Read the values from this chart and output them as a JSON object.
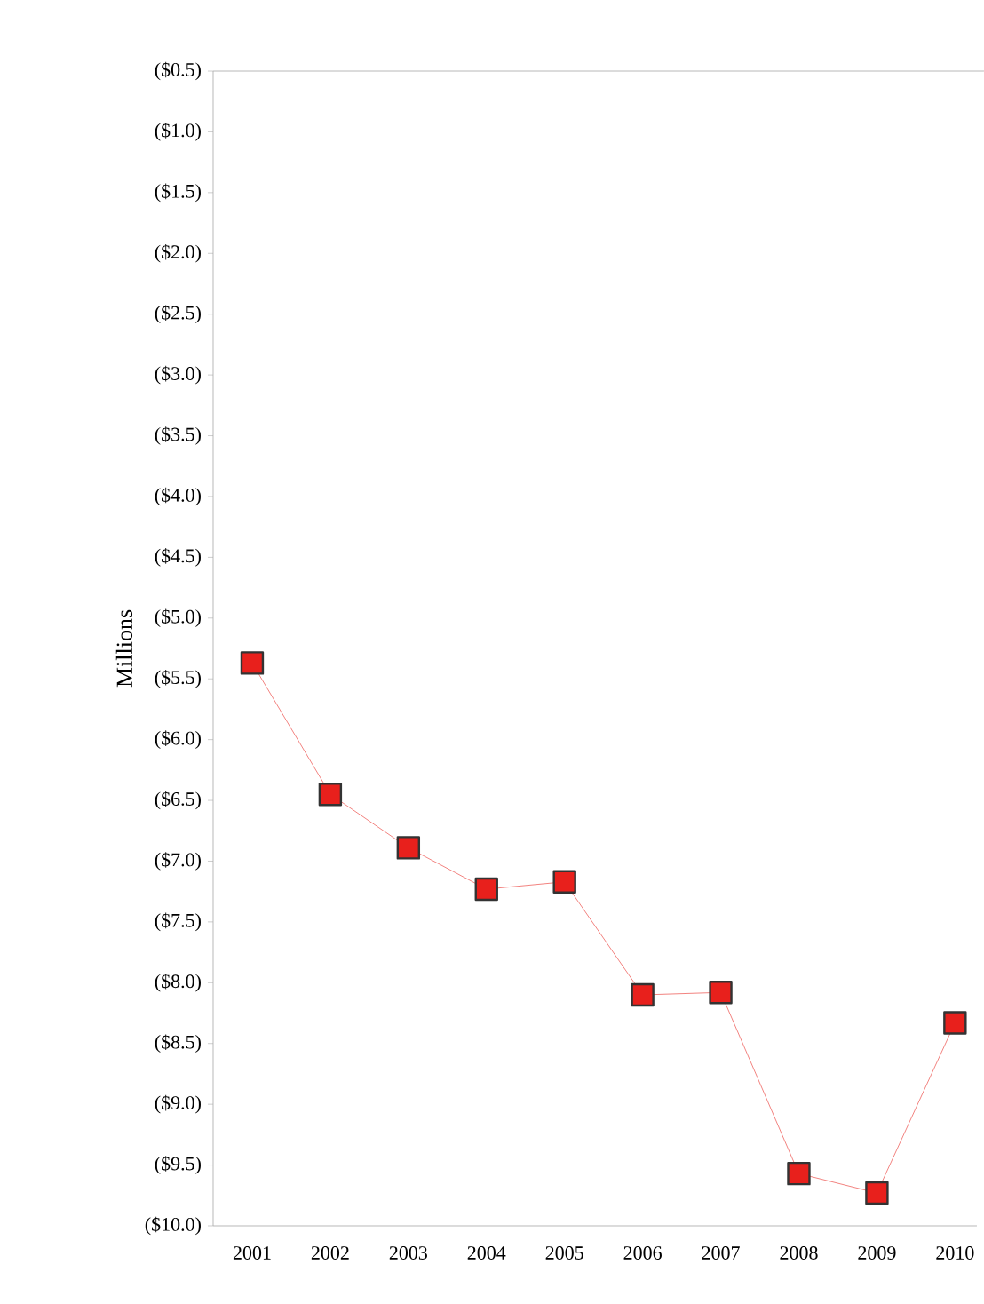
{
  "chart_data": {
    "type": "line",
    "ylabel": "Millions",
    "categories": [
      "2001",
      "2002",
      "2003",
      "2004",
      "2005",
      "2006",
      "2007",
      "2008",
      "2009",
      "2010"
    ],
    "series": [
      {
        "color": "#e8201c",
        "values": [
          -5.37,
          -6.45,
          -6.89,
          -7.23,
          -7.17,
          -8.1,
          -8.08,
          -9.57,
          -9.73,
          -8.33
        ]
      }
    ],
    "ylim": [
      -10.0,
      -0.5
    ],
    "yticks": [
      {
        "value": -0.5,
        "label": "($0.5)"
      },
      {
        "value": -1.0,
        "label": "($1.0)"
      },
      {
        "value": -1.5,
        "label": "($1.5)"
      },
      {
        "value": -2.0,
        "label": "($2.0)"
      },
      {
        "value": -2.5,
        "label": "($2.5)"
      },
      {
        "value": -3.0,
        "label": "($3.0)"
      },
      {
        "value": -3.5,
        "label": "($3.5)"
      },
      {
        "value": -4.0,
        "label": "($4.0)"
      },
      {
        "value": -4.5,
        "label": "($4.5)"
      },
      {
        "value": -5.0,
        "label": "($5.0)"
      },
      {
        "value": -5.5,
        "label": "($5.5)"
      },
      {
        "value": -6.0,
        "label": "($6.0)"
      },
      {
        "value": -6.5,
        "label": "($6.5)"
      },
      {
        "value": -7.0,
        "label": "($7.0)"
      },
      {
        "value": -7.5,
        "label": "($7.5)"
      },
      {
        "value": -8.0,
        "label": "($8.0)"
      },
      {
        "value": -8.5,
        "label": "($8.5)"
      },
      {
        "value": -9.0,
        "label": "($9.0)"
      },
      {
        "value": -9.5,
        "label": "($9.5)"
      },
      {
        "value": -10.0,
        "label": "($10.0)"
      }
    ],
    "marker": "square",
    "line_style": "solid"
  }
}
